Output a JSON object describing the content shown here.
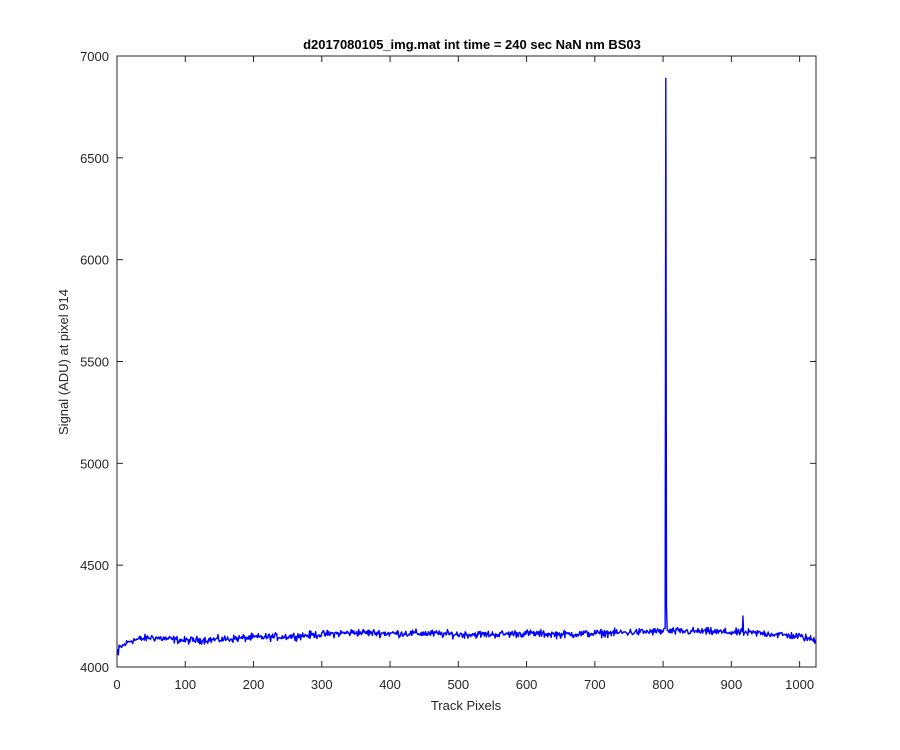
{
  "chart_data": {
    "type": "line",
    "title": "d2017080105_img.mat int time = 240 sec  NaN nm BS03",
    "xlabel": "Track Pixels",
    "ylabel": "Signal (ADU) at pixel 914",
    "xlim": [
      0,
      1024
    ],
    "ylim": [
      4000,
      7000
    ],
    "xticks": [
      0,
      100,
      200,
      300,
      400,
      500,
      600,
      700,
      800,
      900,
      1000
    ],
    "yticks": [
      4000,
      4500,
      5000,
      5500,
      6000,
      6500,
      7000
    ],
    "grid": false,
    "line_color": "#0000ff",
    "series": [
      {
        "name": "",
        "baseline": [
          [
            0,
            4085
          ],
          [
            20,
            4130
          ],
          [
            50,
            4145
          ],
          [
            100,
            4130
          ],
          [
            150,
            4135
          ],
          [
            200,
            4145
          ],
          [
            250,
            4150
          ],
          [
            300,
            4160
          ],
          [
            350,
            4170
          ],
          [
            400,
            4165
          ],
          [
            450,
            4165
          ],
          [
            500,
            4160
          ],
          [
            550,
            4160
          ],
          [
            600,
            4165
          ],
          [
            650,
            4160
          ],
          [
            700,
            4165
          ],
          [
            750,
            4170
          ],
          [
            800,
            4175
          ],
          [
            850,
            4175
          ],
          [
            900,
            4170
          ],
          [
            950,
            4165
          ],
          [
            1000,
            4150
          ],
          [
            1024,
            4130
          ]
        ],
        "noise_amplitude": 18,
        "spikes": [
          {
            "x": 802,
            "y": 4190
          },
          {
            "x": 803,
            "y": 4190
          },
          {
            "x": 804,
            "y": 6890
          },
          {
            "x": 805,
            "y": 4300
          },
          {
            "x": 806,
            "y": 4180
          },
          {
            "x": 917,
            "y": 4250
          }
        ],
        "dips": [
          {
            "x": 2,
            "y": 4060
          }
        ]
      }
    ]
  }
}
